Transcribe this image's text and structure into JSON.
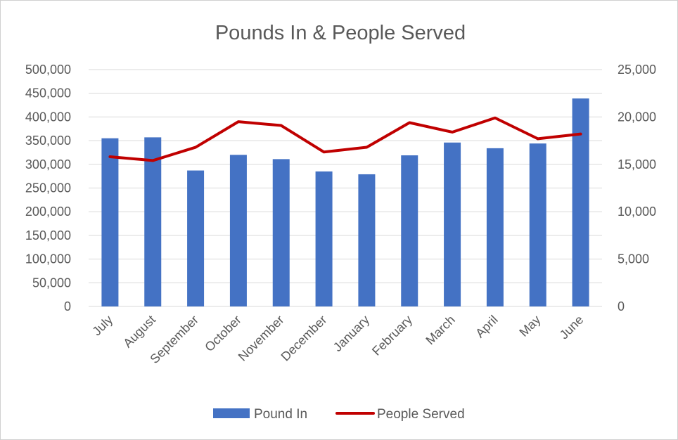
{
  "chart_data": {
    "type": "bar",
    "title": "Pounds In & People Served",
    "categories": [
      "July",
      "August",
      "September",
      "October",
      "November",
      "December",
      "January",
      "February",
      "March",
      "April",
      "May",
      "June"
    ],
    "series": [
      {
        "name": "Pound In",
        "type": "bar",
        "axis": "left",
        "color": "#4472C4",
        "values": [
          355000,
          357000,
          287000,
          320000,
          311000,
          285000,
          279000,
          319000,
          346000,
          334000,
          344000,
          439000
        ]
      },
      {
        "name": "People Served",
        "type": "line",
        "axis": "right",
        "color": "#C00000",
        "values": [
          15800,
          15400,
          16800,
          19500,
          19100,
          16300,
          16800,
          19400,
          18400,
          19900,
          17700,
          18200
        ]
      }
    ],
    "y_left": {
      "ylim": [
        0,
        500000
      ],
      "ticks": [
        "0",
        "50,000",
        "100,000",
        "150,000",
        "200,000",
        "250,000",
        "300,000",
        "350,000",
        "400,000",
        "450,000",
        "500,000"
      ]
    },
    "y_right": {
      "ylim": [
        0,
        25000
      ],
      "ticks": [
        "0",
        "5,000",
        "10,000",
        "15,000",
        "20,000",
        "25,000"
      ]
    },
    "grid": true,
    "legend_position": "bottom"
  }
}
